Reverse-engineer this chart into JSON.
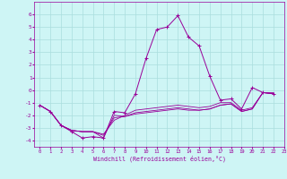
{
  "xlabel": "Windchill (Refroidissement éolien,°C)",
  "background_color": "#cef5f5",
  "grid_color": "#aadddd",
  "line_color": "#990099",
  "xlim": [
    -0.5,
    23
  ],
  "ylim": [
    -4.5,
    7
  ],
  "xticks": [
    0,
    1,
    2,
    3,
    4,
    5,
    6,
    7,
    8,
    9,
    10,
    11,
    12,
    13,
    14,
    15,
    16,
    17,
    18,
    19,
    20,
    21,
    22,
    23
  ],
  "yticks": [
    -4,
    -3,
    -2,
    -1,
    0,
    1,
    2,
    3,
    4,
    5,
    6
  ],
  "series0_x": [
    0,
    1,
    2,
    3,
    4,
    5,
    6,
    7,
    8,
    9,
    10,
    11,
    12,
    13,
    14,
    15,
    16,
    17,
    18,
    19,
    20,
    21,
    22
  ],
  "series0_y": [
    -1.2,
    -1.7,
    -2.8,
    -3.3,
    -3.8,
    -3.7,
    -3.8,
    -1.7,
    -1.8,
    -0.3,
    2.5,
    4.8,
    5.0,
    5.9,
    4.2,
    3.5,
    1.1,
    -0.8,
    -0.7,
    -1.5,
    0.2,
    -0.2,
    -0.3
  ],
  "series1_y": [
    -1.2,
    -1.7,
    -2.8,
    -3.2,
    -3.3,
    -3.3,
    -3.8,
    -2.0,
    -2.1,
    -1.8,
    -1.7,
    -1.6,
    -1.5,
    -1.4,
    -1.5,
    -1.6,
    -1.5,
    -1.2,
    -1.1,
    -1.7,
    -1.5,
    -0.2,
    -0.3
  ],
  "series2_y": [
    -1.2,
    -1.7,
    -2.8,
    -3.2,
    -3.3,
    -3.3,
    -3.6,
    -2.2,
    -2.1,
    -1.9,
    -1.8,
    -1.7,
    -1.6,
    -1.5,
    -1.6,
    -1.6,
    -1.5,
    -1.2,
    -1.1,
    -1.7,
    -1.5,
    -0.2,
    -0.3
  ],
  "series3_y": [
    -1.2,
    -1.7,
    -2.8,
    -3.2,
    -3.3,
    -3.3,
    -3.5,
    -2.4,
    -2.0,
    -1.6,
    -1.5,
    -1.4,
    -1.3,
    -1.2,
    -1.3,
    -1.4,
    -1.3,
    -1.0,
    -1.0,
    -1.6,
    -1.4,
    -0.2,
    -0.2
  ]
}
